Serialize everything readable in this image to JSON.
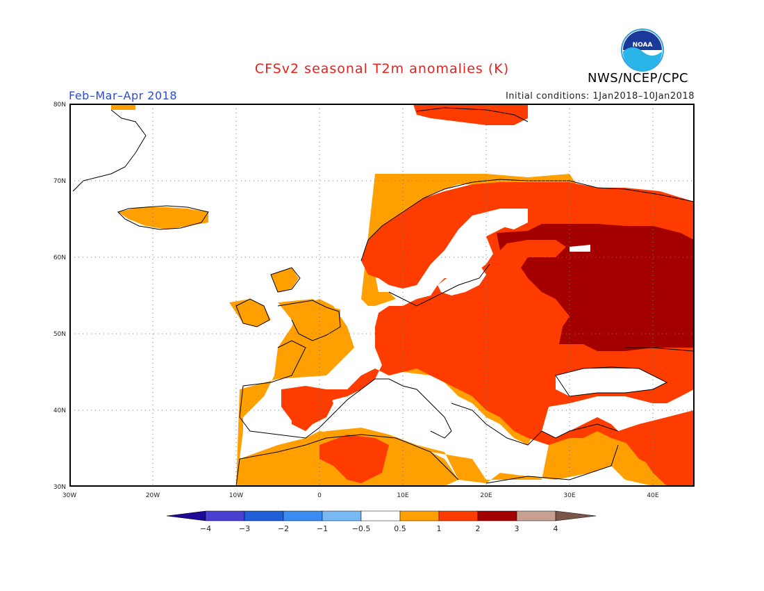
{
  "header": {
    "title": "CFSv2 seasonal T2m anomalies (K)",
    "agency": "NWS/NCEP/CPC",
    "season": "Feb–Mar–Apr 2018",
    "initial_conditions": "Initial conditions: 1Jan2018–10Jan2018",
    "logo_text": "NOAA"
  },
  "map": {
    "projection": "lat-lon",
    "lon_range": [
      -30,
      45
    ],
    "lat_range": [
      30,
      80
    ],
    "lon_ticks": [
      "30W",
      "20W",
      "10W",
      "0",
      "10E",
      "20E",
      "30E",
      "40E"
    ],
    "lat_ticks": [
      "80N",
      "70N",
      "60N",
      "50N",
      "40N",
      "30N"
    ],
    "grid": "dotted"
  },
  "colorbar": {
    "labels": [
      "−4",
      "−3",
      "−2",
      "−1",
      "−0.5",
      "0.5",
      "1",
      "2",
      "3",
      "4"
    ],
    "colors": [
      "#1f0a98",
      "#4b3fd0",
      "#1f5fd8",
      "#3a8cf0",
      "#78b8f5",
      "#ffffff",
      "#ffa000",
      "#ff3c00",
      "#a50000",
      "#c8a090",
      "#7a5548"
    ]
  },
  "colors": {
    "title": "#e8201c",
    "season": "#2a4bd7",
    "anom_05_1": "#ffa000",
    "anom_1_2": "#ff3c00",
    "anom_2_3": "#a50000"
  }
}
